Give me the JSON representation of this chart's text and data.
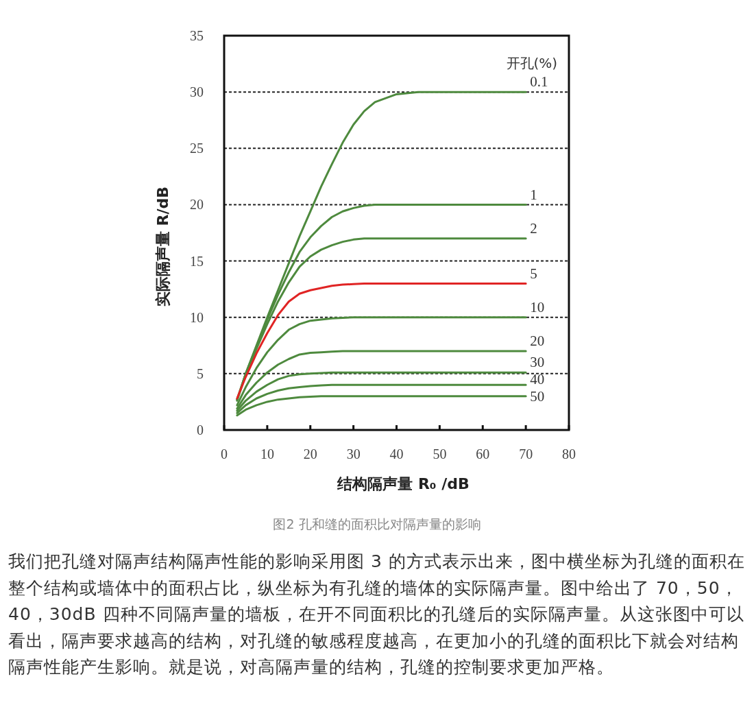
{
  "chart_data": {
    "type": "line",
    "xlabel": "结构隔声量 R₀ /dB",
    "ylabel": "实际隔声量 R/dB",
    "legend_title": "开孔(%)",
    "xlim": [
      0,
      80
    ],
    "xticks": [
      0,
      10,
      20,
      30,
      40,
      50,
      60,
      70,
      80
    ],
    "ylim": [
      0,
      35
    ],
    "yticks": [
      0,
      5,
      10,
      15,
      20,
      25,
      30,
      35
    ],
    "grid": "y",
    "marker": "none",
    "line_style": "solid",
    "x": [
      3,
      5,
      7.5,
      10,
      12.5,
      15,
      17.5,
      20,
      22.5,
      25,
      27.5,
      30,
      32.5,
      35,
      40,
      45,
      50,
      60,
      70
    ],
    "series": [
      {
        "name": "0.1",
        "color": "#4e8a3e",
        "values": [
          2.7,
          5,
          7.5,
          10,
          12.4,
          14.8,
          17.2,
          19.4,
          21.6,
          23.6,
          25.5,
          27.1,
          28.3,
          29.1,
          29.8,
          30,
          30,
          30,
          30
        ]
      },
      {
        "name": "1",
        "color": "#4e8a3e",
        "values": [
          2.7,
          5,
          7.4,
          9.8,
          12,
          14,
          15.8,
          17.1,
          18.1,
          18.9,
          19.4,
          19.7,
          19.9,
          20,
          20,
          20,
          20,
          20,
          20
        ]
      },
      {
        "name": "2",
        "color": "#4e8a3e",
        "values": [
          2.6,
          4.9,
          7.2,
          9.4,
          11.4,
          13.1,
          14.5,
          15.4,
          16,
          16.4,
          16.7,
          16.9,
          17,
          17,
          17,
          17,
          17,
          17,
          17
        ]
      },
      {
        "name": "5",
        "color": "#e02424",
        "values": [
          2.8,
          4.7,
          6.8,
          8.6,
          10.2,
          11.4,
          12.1,
          12.4,
          12.6,
          12.8,
          12.9,
          12.95,
          13,
          13,
          13,
          13,
          13,
          13,
          13
        ]
      },
      {
        "name": "10",
        "color": "#4e8a3e",
        "values": [
          2.2,
          3.8,
          5.5,
          6.9,
          8,
          8.9,
          9.4,
          9.7,
          9.8,
          9.9,
          9.95,
          10,
          10,
          10,
          10,
          10,
          10,
          10,
          10
        ]
      },
      {
        "name": "20",
        "color": "#4e8a3e",
        "values": [
          1.9,
          3.1,
          4.2,
          5.1,
          5.8,
          6.3,
          6.7,
          6.85,
          6.9,
          6.95,
          7,
          7,
          7,
          7,
          7,
          7,
          7,
          7,
          7
        ]
      },
      {
        "name": "30",
        "color": "#4e8a3e",
        "values": [
          1.7,
          2.6,
          3.4,
          4,
          4.5,
          4.8,
          4.95,
          5,
          5.05,
          5.1,
          5.1,
          5.1,
          5.1,
          5.1,
          5.1,
          5.1,
          5.1,
          5.1,
          5.1
        ]
      },
      {
        "name": "40",
        "color": "#4e8a3e",
        "values": [
          1.5,
          2.2,
          2.8,
          3.2,
          3.5,
          3.7,
          3.8,
          3.9,
          3.95,
          4,
          4,
          4,
          4,
          4,
          4,
          4,
          4,
          4,
          4
        ]
      },
      {
        "name": "50",
        "color": "#4e8a3e",
        "values": [
          1.3,
          1.8,
          2.2,
          2.5,
          2.7,
          2.8,
          2.9,
          2.95,
          3,
          3,
          3,
          3,
          3,
          3,
          3,
          3,
          3,
          3,
          3
        ]
      }
    ],
    "annotations": [
      "图2  孔和缝的面积比对隔声量的影响",
      "我们把孔缝对隔声结构隔声性能的影响采用图 3 的方式表示出来，图中横坐标为孔缝的面积在整个结构或墙体中的面积占比，纵坐标为有孔缝的墙体的实际隔声量。图中给出了 70，50，40，30dB 四种不同隔声量的墙板，在开不同面积比的孔缝后的实际隔声量。从这张图中可以看出，隔声要求越高的结构，对孔缝的敏感程度越高，在更加小的孔缝的面积比下就会对结构隔声性能产生影响。就是说，对高隔声量的结构，孔缝的控制要求更加严格。"
    ]
  }
}
